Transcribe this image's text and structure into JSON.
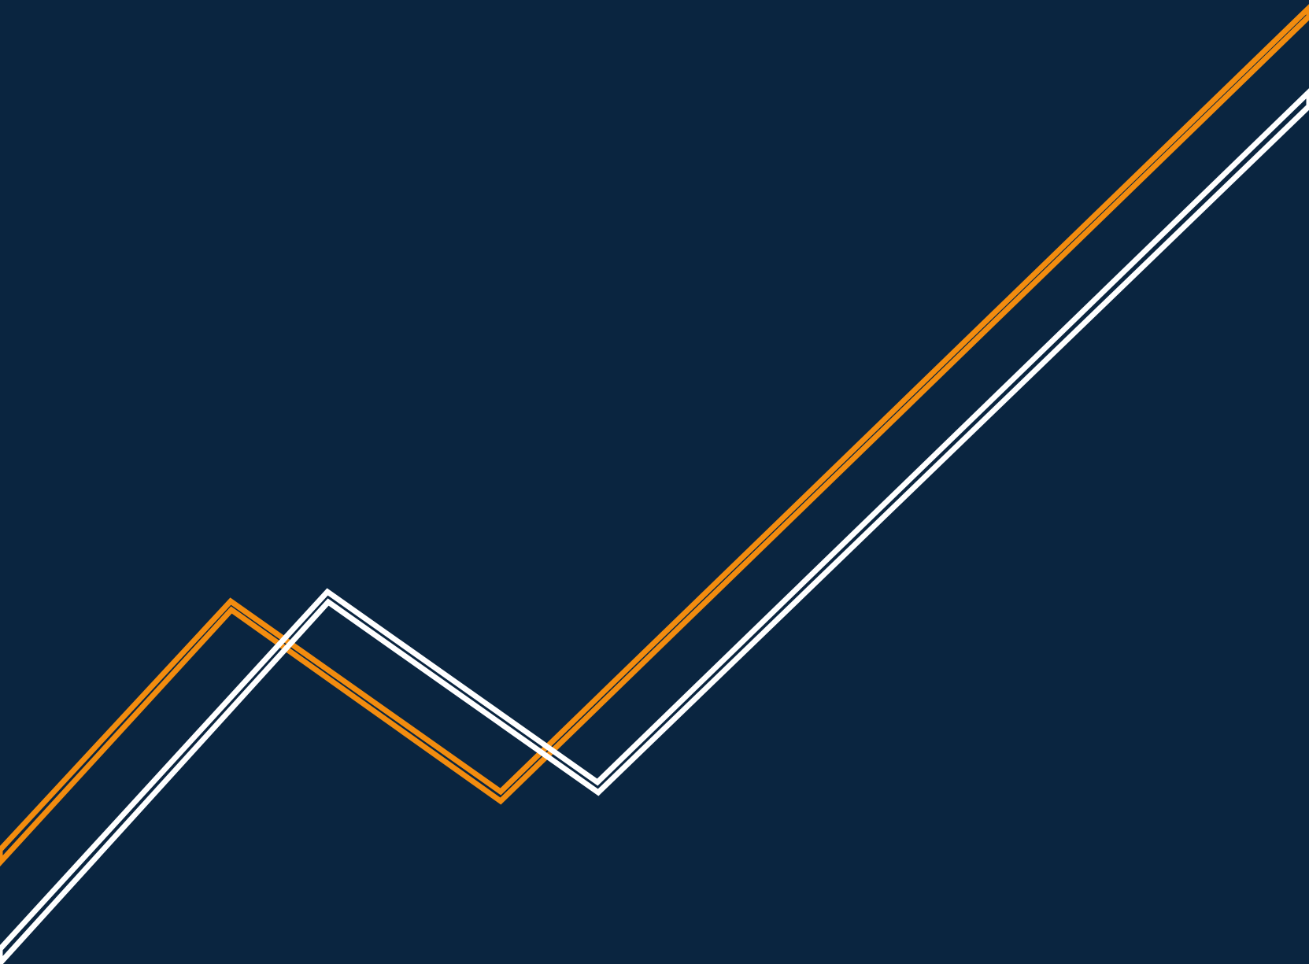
{
  "background": {
    "color": "#0a2540"
  },
  "decoration": {
    "lines": [
      {
        "name": "orange-zigzag-line",
        "color": "#f28c0f"
      },
      {
        "name": "white-zigzag-line",
        "color": "#ffffff"
      }
    ]
  }
}
